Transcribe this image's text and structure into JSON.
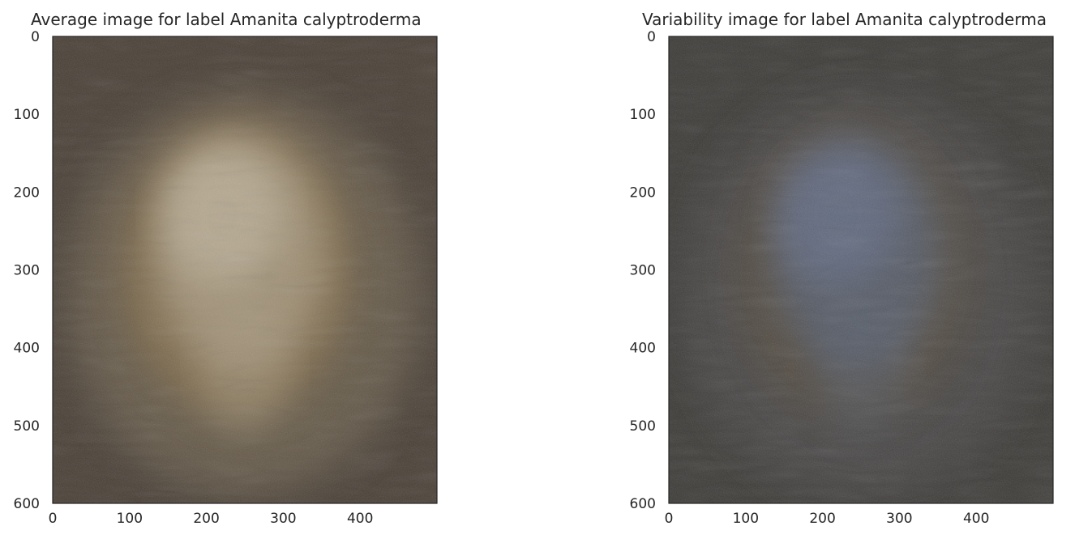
{
  "chart_data": [
    {
      "type": "heatmap",
      "title": "Average image for label Amanita calyptroderma",
      "xlabel": "",
      "ylabel": "",
      "xlim": [
        0,
        500
      ],
      "ylim": [
        600,
        0
      ],
      "x_ticks": [
        0,
        100,
        200,
        300,
        400
      ],
      "y_ticks": [
        0,
        100,
        200,
        300,
        400,
        500,
        600
      ],
      "grid": false,
      "colors": {
        "background": "#4a4037",
        "mid": "#6b5e4d",
        "center": "#a89a80",
        "highlight": "#bfb39c",
        "warm": "#8a7350"
      }
    },
    {
      "type": "heatmap",
      "title": "Variability image for label Amanita calyptroderma",
      "xlabel": "",
      "ylabel": "",
      "xlim": [
        0,
        500
      ],
      "ylim": [
        600,
        0
      ],
      "x_ticks": [
        0,
        100,
        200,
        300,
        400
      ],
      "y_ticks": [
        0,
        100,
        200,
        300,
        400,
        500,
        600
      ],
      "grid": false,
      "colors": {
        "background": "#3e3c39",
        "mid": "#4c4a48",
        "center": "#596070",
        "highlight": "#66708a",
        "warm": "#5a5040"
      }
    }
  ]
}
